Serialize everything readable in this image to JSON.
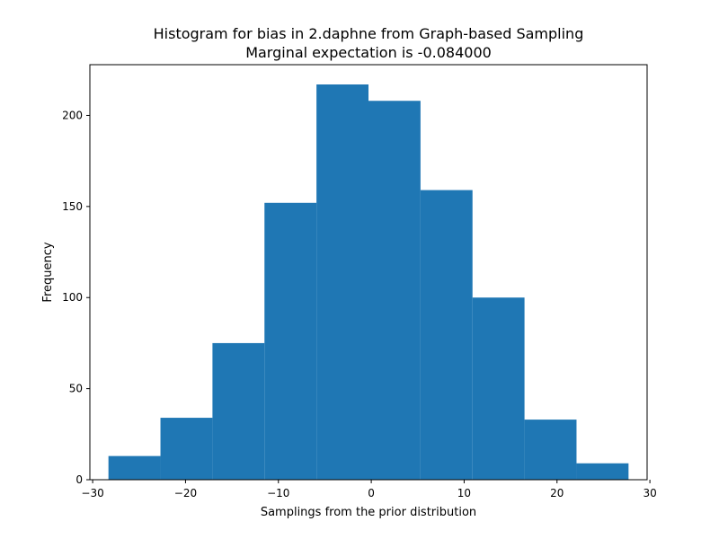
{
  "chart_data": {
    "type": "bar",
    "subtype": "histogram",
    "title": "Histogram for bias in 2.daphne from Graph-based Sampling",
    "subtitle": "Marginal expectation is -0.084000",
    "xlabel": "Samplings from the prior distribution",
    "ylabel": "Frequency",
    "bin_edges": [
      -28.3,
      -22.7,
      -17.1,
      -11.5,
      -5.9,
      -0.3,
      5.3,
      10.9,
      16.5,
      22.1,
      27.7
    ],
    "values": [
      13,
      34,
      75,
      152,
      217,
      208,
      159,
      100,
      33,
      9
    ],
    "xlim": [
      -30.3,
      29.7
    ],
    "ylim": [
      0,
      227.85
    ],
    "xticks": [
      -30,
      -20,
      -10,
      0,
      10,
      20,
      30
    ],
    "xtick_labels": [
      "−30",
      "−20",
      "−10",
      "0",
      "10",
      "20",
      "30"
    ],
    "yticks": [
      0,
      50,
      100,
      150,
      200
    ],
    "ytick_labels": [
      "0",
      "50",
      "100",
      "150",
      "200"
    ],
    "bar_color": "#1f77b4",
    "grid": false,
    "legend": "none"
  }
}
